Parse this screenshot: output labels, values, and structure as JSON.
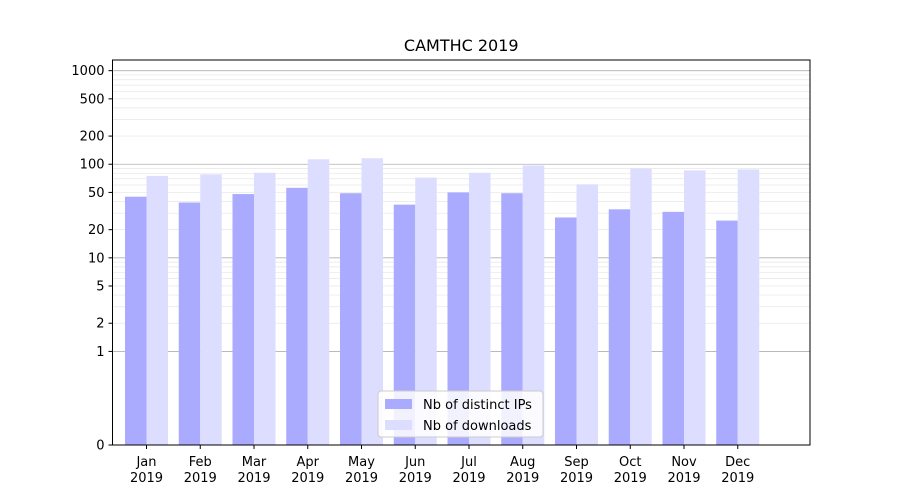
{
  "chart_data": {
    "type": "bar",
    "title": "CAMTHC 2019",
    "xlabel": "",
    "ylabel": "",
    "y_scale": "symlog",
    "y_ticks": [
      0,
      1,
      2,
      5,
      10,
      20,
      50,
      100,
      200,
      500,
      1000
    ],
    "ylim": [
      0,
      1300
    ],
    "grid": true,
    "legend_position": "lower center",
    "categories": [
      "Jan\n2019",
      "Feb\n2019",
      "Mar\n2019",
      "Apr\n2019",
      "May\n2019",
      "Jun\n2019",
      "Jul\n2019",
      "Aug\n2019",
      "Sep\n2019",
      "Oct\n2019",
      "Nov\n2019",
      "Dec\n2019"
    ],
    "series": [
      {
        "name": "Nb of distinct IPs",
        "color": "#aaaaff",
        "values": [
          45,
          39,
          48,
          56,
          49,
          37,
          50,
          49,
          27,
          33,
          31,
          25
        ]
      },
      {
        "name": "Nb of downloads",
        "color": "#ddddff",
        "values": [
          75,
          78,
          81,
          113,
          116,
          72,
          81,
          97,
          61,
          90,
          86,
          88
        ]
      }
    ]
  }
}
